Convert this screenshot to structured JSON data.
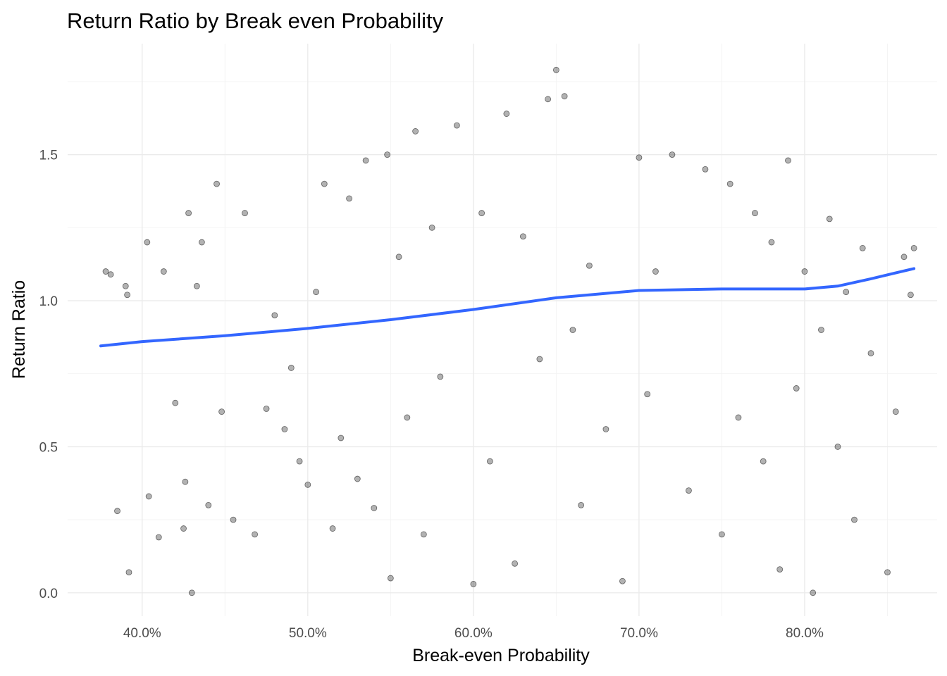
{
  "chart_data": {
    "type": "scatter",
    "title": "Return Ratio by Break even Probability",
    "xlabel": "Break-even Probability",
    "ylabel": "Return Ratio",
    "xlim": [
      0.355,
      0.88
    ],
    "ylim": [
      -0.08,
      1.88
    ],
    "x_ticks": [
      0.4,
      0.5,
      0.6,
      0.7,
      0.8
    ],
    "x_tick_labels": [
      "40.0%",
      "50.0%",
      "60.0%",
      "70.0%",
      "80.0%"
    ],
    "y_ticks": [
      0.0,
      0.5,
      1.0,
      1.5
    ],
    "y_tick_labels": [
      "0.0",
      "0.5",
      "1.0",
      "1.5"
    ],
    "grid": true,
    "legend": "none",
    "point_color": "#000000",
    "point_opacity": 0.3,
    "smooth_color": "#3366ff",
    "smooth_line": {
      "x": [
        0.375,
        0.4,
        0.45,
        0.5,
        0.55,
        0.6,
        0.65,
        0.7,
        0.75,
        0.8,
        0.82,
        0.84,
        0.866
      ],
      "y": [
        0.845,
        0.86,
        0.88,
        0.905,
        0.935,
        0.97,
        1.01,
        1.035,
        1.04,
        1.04,
        1.05,
        1.075,
        1.11
      ]
    },
    "points": [
      [
        0.378,
        1.1
      ],
      [
        0.381,
        1.09
      ],
      [
        0.385,
        0.28
      ],
      [
        0.39,
        1.05
      ],
      [
        0.391,
        1.02
      ],
      [
        0.392,
        0.07
      ],
      [
        0.403,
        1.2
      ],
      [
        0.404,
        0.33
      ],
      [
        0.41,
        0.19
      ],
      [
        0.413,
        1.1
      ],
      [
        0.42,
        0.65
      ],
      [
        0.425,
        0.22
      ],
      [
        0.426,
        0.38
      ],
      [
        0.428,
        1.3
      ],
      [
        0.43,
        0.0
      ],
      [
        0.433,
        1.05
      ],
      [
        0.436,
        1.2
      ],
      [
        0.44,
        0.3
      ],
      [
        0.445,
        1.4
      ],
      [
        0.448,
        0.62
      ],
      [
        0.455,
        0.25
      ],
      [
        0.462,
        1.3
      ],
      [
        0.468,
        0.2
      ],
      [
        0.475,
        0.63
      ],
      [
        0.48,
        0.95
      ],
      [
        0.486,
        0.56
      ],
      [
        0.49,
        0.77
      ],
      [
        0.495,
        0.45
      ],
      [
        0.5,
        0.37
      ],
      [
        0.505,
        1.03
      ],
      [
        0.51,
        1.4
      ],
      [
        0.515,
        0.22
      ],
      [
        0.52,
        0.53
      ],
      [
        0.525,
        1.35
      ],
      [
        0.53,
        0.39
      ],
      [
        0.535,
        1.48
      ],
      [
        0.54,
        0.29
      ],
      [
        0.548,
        1.5
      ],
      [
        0.55,
        0.05
      ],
      [
        0.555,
        1.15
      ],
      [
        0.56,
        0.6
      ],
      [
        0.565,
        1.58
      ],
      [
        0.57,
        0.2
      ],
      [
        0.575,
        1.25
      ],
      [
        0.58,
        0.74
      ],
      [
        0.59,
        1.6
      ],
      [
        0.6,
        0.03
      ],
      [
        0.605,
        1.3
      ],
      [
        0.61,
        0.45
      ],
      [
        0.62,
        1.64
      ],
      [
        0.625,
        0.1
      ],
      [
        0.63,
        1.22
      ],
      [
        0.64,
        0.8
      ],
      [
        0.645,
        1.69
      ],
      [
        0.65,
        1.79
      ],
      [
        0.655,
        1.7
      ],
      [
        0.66,
        0.9
      ],
      [
        0.665,
        0.3
      ],
      [
        0.67,
        1.12
      ],
      [
        0.68,
        0.56
      ],
      [
        0.69,
        0.04
      ],
      [
        0.7,
        1.49
      ],
      [
        0.705,
        0.68
      ],
      [
        0.71,
        1.1
      ],
      [
        0.72,
        1.5
      ],
      [
        0.73,
        0.35
      ],
      [
        0.74,
        1.45
      ],
      [
        0.75,
        0.2
      ],
      [
        0.755,
        1.4
      ],
      [
        0.76,
        0.6
      ],
      [
        0.77,
        1.3
      ],
      [
        0.775,
        0.45
      ],
      [
        0.78,
        1.2
      ],
      [
        0.785,
        0.08
      ],
      [
        0.79,
        1.48
      ],
      [
        0.795,
        0.7
      ],
      [
        0.8,
        1.1
      ],
      [
        0.805,
        0.0
      ],
      [
        0.81,
        0.9
      ],
      [
        0.815,
        1.28
      ],
      [
        0.82,
        0.5
      ],
      [
        0.825,
        1.03
      ],
      [
        0.83,
        0.25
      ],
      [
        0.835,
        1.18
      ],
      [
        0.84,
        0.82
      ],
      [
        0.85,
        0.07
      ],
      [
        0.855,
        0.62
      ],
      [
        0.86,
        1.15
      ],
      [
        0.864,
        1.02
      ],
      [
        0.866,
        1.18
      ]
    ]
  }
}
